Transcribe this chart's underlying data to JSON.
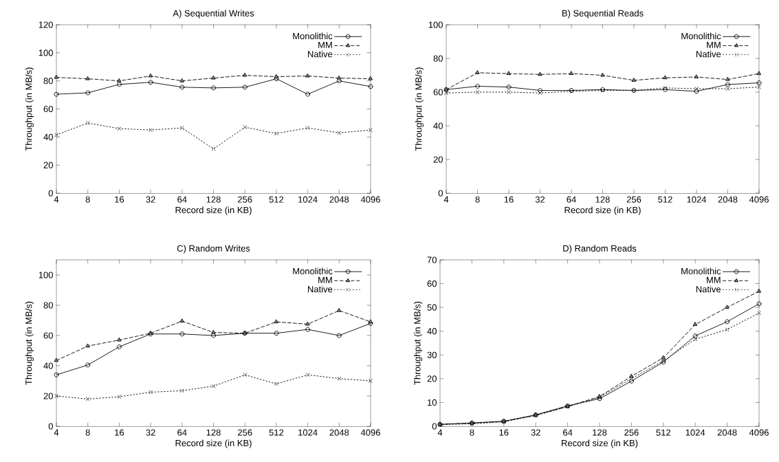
{
  "chart_data": [
    {
      "type": "line",
      "title": "A) Sequential Writes",
      "xlabel": "Record size (in KB)",
      "ylabel": "Throughput (in MB/s)",
      "categories": [
        "4",
        "8",
        "16",
        "32",
        "64",
        "128",
        "256",
        "512",
        "1024",
        "2048",
        "4096"
      ],
      "ylim": [
        0,
        120
      ],
      "yticks": [
        0,
        20,
        40,
        60,
        80,
        100,
        120
      ],
      "legend": "top right",
      "grid": false,
      "series": [
        {
          "name": "Monolithic",
          "color": "#000000",
          "marker": "circle",
          "line_style": "solid",
          "values": [
            70.5,
            71.5,
            77.5,
            79,
            75.5,
            75,
            75.5,
            81.5,
            70.5,
            80,
            76
          ]
        },
        {
          "name": "MM",
          "color": "#000000",
          "marker": "triangle",
          "line_style": "dashed",
          "values": [
            82.5,
            81.5,
            80,
            83.5,
            80,
            82,
            84,
            83,
            83.5,
            82,
            81.5
          ]
        },
        {
          "name": "Native",
          "color": "#000000",
          "marker": "cross",
          "line_style": "dotted",
          "values": [
            41.5,
            50,
            46,
            45,
            46.5,
            31.5,
            47,
            42.5,
            46.5,
            43,
            45
          ]
        }
      ]
    },
    {
      "type": "line",
      "title": "B) Sequential Reads",
      "xlabel": "Record size (in KB)",
      "ylabel": "Throughput (in MB/s)",
      "categories": [
        "4",
        "8",
        "16",
        "32",
        "64",
        "128",
        "256",
        "512",
        "1024",
        "2048",
        "4096"
      ],
      "ylim": [
        0,
        100
      ],
      "yticks": [
        0,
        20,
        40,
        60,
        80,
        100
      ],
      "legend": "top right",
      "grid": false,
      "series": [
        {
          "name": "Monolithic",
          "color": "#000000",
          "marker": "circle",
          "line_style": "solid",
          "values": [
            61.5,
            63.5,
            63,
            61,
            61,
            61.5,
            61,
            61.5,
            60.5,
            64.5,
            65.5
          ]
        },
        {
          "name": "MM",
          "color": "#000000",
          "marker": "triangle",
          "line_style": "dashed",
          "values": [
            61.5,
            71.5,
            71,
            70.5,
            71,
            70,
            67,
            68.5,
            69,
            67.5,
            71
          ]
        },
        {
          "name": "Native",
          "color": "#000000",
          "marker": "cross",
          "line_style": "dotted",
          "values": [
            59.5,
            60,
            60,
            59.5,
            60.5,
            61,
            61,
            62.5,
            62,
            62,
            63
          ]
        }
      ]
    },
    {
      "type": "line",
      "title": "C) Random Writes",
      "xlabel": "Record size (in KB)",
      "ylabel": "Throughput (in MB/s)",
      "categories": [
        "4",
        "8",
        "16",
        "32",
        "64",
        "128",
        "256",
        "512",
        "1024",
        "2048",
        "4096"
      ],
      "ylim": [
        0,
        110
      ],
      "yticks": [
        0,
        20,
        40,
        60,
        80,
        100
      ],
      "legend": "top right",
      "grid": false,
      "series": [
        {
          "name": "Monolithic",
          "color": "#000000",
          "marker": "circle",
          "line_style": "solid",
          "values": [
            34,
            40.5,
            52.5,
            61,
            61,
            60,
            61.5,
            61.5,
            64,
            60,
            68
          ]
        },
        {
          "name": "MM",
          "color": "#000000",
          "marker": "triangle",
          "line_style": "dashed",
          "values": [
            43.5,
            53,
            57,
            61.5,
            69.5,
            62,
            61.5,
            69,
            67.5,
            76.5,
            69
          ]
        },
        {
          "name": "Native",
          "color": "#000000",
          "marker": "cross",
          "line_style": "dotted",
          "values": [
            20,
            18,
            19.5,
            22.5,
            23.5,
            26.5,
            34,
            28,
            34,
            31.5,
            30
          ]
        }
      ]
    },
    {
      "type": "line",
      "title": "D) Random Reads",
      "xlabel": "Record size (in KB)",
      "ylabel": "Throughput (in MB/s)",
      "categories": [
        "4",
        "8",
        "16",
        "32",
        "64",
        "128",
        "256",
        "512",
        "1024",
        "2048",
        "4096"
      ],
      "ylim": [
        0,
        70
      ],
      "yticks": [
        0,
        10,
        20,
        30,
        40,
        50,
        60,
        70
      ],
      "legend": "top right",
      "grid": false,
      "series": [
        {
          "name": "Monolithic",
          "color": "#000000",
          "marker": "circle",
          "line_style": "solid",
          "values": [
            0.8,
            1.4,
            2.1,
            4.8,
            8.6,
            11.6,
            19,
            27,
            38,
            44,
            51.5
          ]
        },
        {
          "name": "MM",
          "color": "#000000",
          "marker": "triangle",
          "line_style": "dashed",
          "values": [
            0.8,
            1.3,
            2.0,
            4.7,
            8.3,
            12.5,
            21,
            28.8,
            42.8,
            50,
            56.8
          ]
        },
        {
          "name": "Native",
          "color": "#000000",
          "marker": "cross",
          "line_style": "dotted",
          "values": [
            0.7,
            1.0,
            1.9,
            4.5,
            8.2,
            12.2,
            20,
            27.5,
            36.6,
            40.7,
            47.6
          ]
        }
      ]
    }
  ]
}
